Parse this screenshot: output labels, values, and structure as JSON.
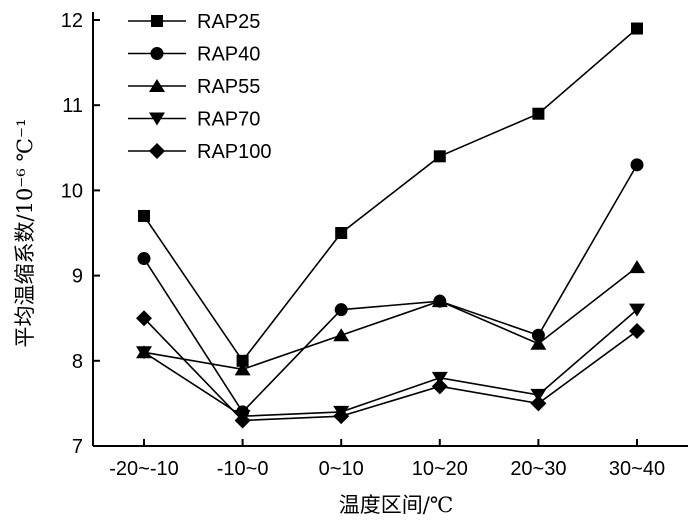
{
  "chart_data": {
    "type": "line",
    "title": "",
    "xlabel": "温度区间/℃",
    "ylabel": "平均温缩系数/10⁻⁶ ℃⁻¹",
    "categories": [
      "-20~-10",
      "-10~0",
      "0~10",
      "10~20",
      "20~30",
      "30~40"
    ],
    "ylim": [
      7,
      12
    ],
    "yticks": [
      "7",
      "8",
      "9",
      "10",
      "11",
      "12"
    ],
    "grid": false,
    "legend_position": "top-left",
    "series": [
      {
        "name": "RAP25",
        "marker": "square",
        "values": [
          9.7,
          8.0,
          9.5,
          10.4,
          10.9,
          11.9
        ]
      },
      {
        "name": "RAP40",
        "marker": "circle",
        "values": [
          9.2,
          7.4,
          8.6,
          8.7,
          8.3,
          10.3
        ]
      },
      {
        "name": "RAP55",
        "marker": "triangle-up",
        "values": [
          8.1,
          7.9,
          8.3,
          8.7,
          8.2,
          9.1
        ]
      },
      {
        "name": "RAP70",
        "marker": "triangle-down",
        "values": [
          8.1,
          7.35,
          7.4,
          7.8,
          7.6,
          8.6
        ]
      },
      {
        "name": "RAP100",
        "marker": "diamond",
        "values": [
          8.5,
          7.3,
          7.35,
          7.7,
          7.5,
          8.35
        ]
      }
    ],
    "colors": {
      "line": "#000000",
      "marker": "#000000"
    }
  }
}
